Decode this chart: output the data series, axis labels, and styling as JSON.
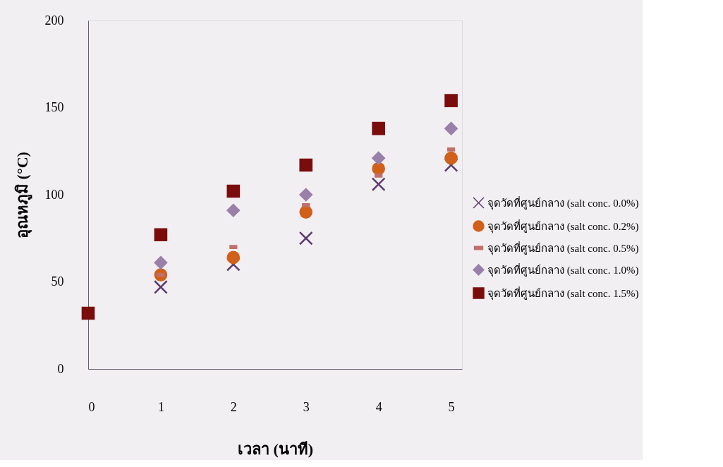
{
  "chart_data": {
    "type": "scatter",
    "xlabel": "เวลา (นาที)",
    "ylabel": "อุณหภูมิ (°C)",
    "x": [
      1,
      2,
      3,
      4,
      5
    ],
    "xlim": [
      0,
      5.15
    ],
    "xticks": [
      0,
      1,
      2,
      3,
      4,
      5
    ],
    "ylim": [
      0,
      200
    ],
    "yticks": [
      0,
      50,
      100,
      150,
      200
    ],
    "grid": false,
    "legend": "right",
    "series": [
      {
        "name": "จุดวัดที่ศูนย์กลาง (salt conc. 0.0%)",
        "color": "#5b3a6e",
        "marker": "cross",
        "values": [
          47,
          60,
          75,
          106,
          117
        ]
      },
      {
        "name": "จุดวัดที่ศูนย์กลาง (salt conc. 0.2%)",
        "color": "#d0601a",
        "marker": "circle",
        "values": [
          54,
          64,
          90,
          115,
          121
        ]
      },
      {
        "name": "จุดวัดที่ศูนย์กลาง (salt conc. 0.5%)",
        "color": "#c0706a",
        "values": [
          54,
          70,
          94,
          111,
          126
        ]
      },
      {
        "name": "จุดวัดที่ศูนย์กลาง (salt conc. 1.0%)",
        "color": "#9a80a8",
        "marker": "diamond",
        "values": [
          61,
          91,
          100,
          121,
          138
        ]
      },
      {
        "name": "จุดวัดที่ศูนย์กลาง (salt conc. 1.5%)",
        "color": "#7a0c0c",
        "marker": "square",
        "x": [
          0,
          1,
          2,
          3,
          4,
          5
        ],
        "values": [
          32,
          77,
          102,
          117,
          138,
          154
        ]
      }
    ]
  }
}
